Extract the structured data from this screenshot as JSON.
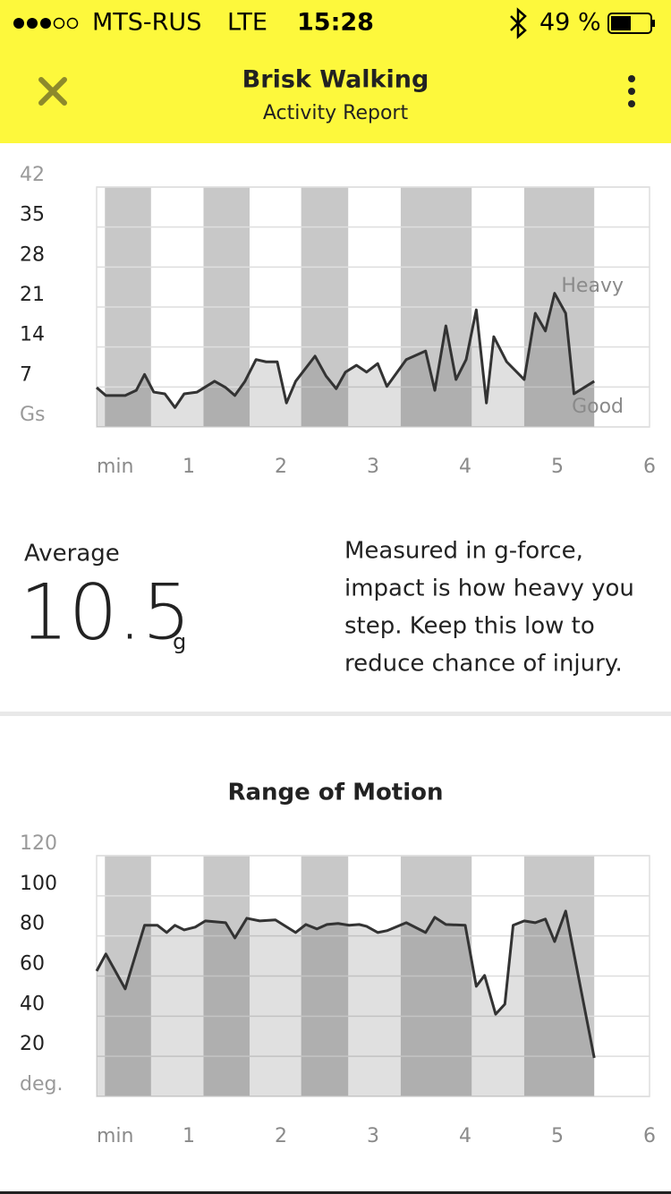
{
  "status_bar": {
    "carrier": "MTS-RUS",
    "network": "LTE",
    "time": "15:28",
    "battery": "49 %"
  },
  "header": {
    "title": "Brisk Walking",
    "subtitle": "Activity Report"
  },
  "chart_data": [
    {
      "type": "line",
      "ylim": [
        0,
        42
      ],
      "yticks": [
        {
          "value": 0,
          "label": "Gs"
        },
        7,
        14,
        21,
        28,
        35,
        42
      ],
      "xlim": [
        0,
        6
      ],
      "xticks": [
        {
          "value": 0,
          "label": "min"
        },
        1,
        2,
        3,
        4,
        5,
        6
      ],
      "grid": true,
      "color": "#333333",
      "band_color": "#c8c8c8",
      "bands": [
        [
          0.09,
          0.59
        ],
        [
          1.16,
          1.66
        ],
        [
          2.22,
          2.73
        ],
        [
          3.3,
          4.07
        ],
        [
          4.64,
          5.4
        ]
      ],
      "annotations": [
        "Heavy",
        "Good"
      ],
      "x": [
        0,
        0.1,
        0.31,
        0.43,
        0.52,
        0.62,
        0.74,
        0.85,
        0.95,
        1.09,
        1.28,
        1.4,
        1.5,
        1.61,
        1.73,
        1.84,
        1.96,
        2.06,
        2.16,
        2.37,
        2.49,
        2.6,
        2.7,
        2.82,
        2.93,
        3.05,
        3.15,
        3.36,
        3.57,
        3.67,
        3.79,
        3.9,
        4.01,
        4.12,
        4.23,
        4.31,
        4.45,
        4.64,
        4.76,
        4.87,
        4.97,
        5.09,
        5.18,
        5.4
      ],
      "values": [
        6.9,
        5.5,
        5.5,
        6.4,
        9.2,
        6.1,
        5.8,
        3.4,
        5.8,
        6.1,
        8.0,
        6.9,
        5.5,
        8.0,
        11.8,
        11.4,
        11.4,
        4.2,
        8.0,
        12.4,
        8.9,
        6.7,
        9.6,
        10.8,
        9.6,
        11.1,
        7.1,
        11.8,
        13.3,
        6.4,
        17.7,
        8.3,
        11.8,
        20.5,
        4.2,
        15.8,
        11.4,
        8.3,
        19.9,
        16.8,
        23.4,
        19.9,
        5.8,
        8.0
      ]
    },
    {
      "type": "line",
      "title": "Range of Motion",
      "ylim": [
        0,
        120
      ],
      "yticks": [
        {
          "value": 0,
          "label": "deg."
        },
        20,
        40,
        60,
        80,
        100,
        120
      ],
      "xlim": [
        0,
        6
      ],
      "xticks": [
        {
          "value": 0,
          "label": "min"
        },
        1,
        2,
        3,
        4,
        5,
        6
      ],
      "grid": true,
      "color": "#333333",
      "band_color": "#c8c8c8",
      "bands": [
        [
          0.09,
          0.59
        ],
        [
          1.16,
          1.66
        ],
        [
          2.22,
          2.73
        ],
        [
          3.3,
          4.07
        ],
        [
          4.64,
          5.4
        ]
      ],
      "x": [
        0,
        0.1,
        0.31,
        0.52,
        0.66,
        0.76,
        0.85,
        0.95,
        1.07,
        1.18,
        1.4,
        1.5,
        1.63,
        1.77,
        1.94,
        2.16,
        2.27,
        2.39,
        2.5,
        2.62,
        2.74,
        2.85,
        2.93,
        3.05,
        3.15,
        3.36,
        3.57,
        3.67,
        3.79,
        4.0,
        4.12,
        4.21,
        4.33,
        4.43,
        4.52,
        4.64,
        4.76,
        4.87,
        4.97,
        5.09,
        5.4
      ],
      "values": [
        62.5,
        71,
        53.6,
        85.3,
        85.3,
        81.7,
        85.3,
        83,
        84.4,
        87.5,
        86.6,
        79,
        88.8,
        87.5,
        88,
        81.7,
        85.7,
        83.5,
        85.7,
        86.2,
        85.3,
        85.7,
        84.8,
        81.7,
        82.6,
        86.6,
        81.7,
        89.3,
        85.7,
        85.3,
        54.9,
        60.3,
        41,
        46,
        85.3,
        87.5,
        86.6,
        88.4,
        77.2,
        92.4,
        19.2
      ]
    }
  ],
  "average": {
    "label": "Average",
    "value": 10.5,
    "unit": "g"
  },
  "description": [
    "Measured in g-force,",
    "impact is how heavy you",
    "step. Keep this low to",
    "reduce chance of injury."
  ]
}
